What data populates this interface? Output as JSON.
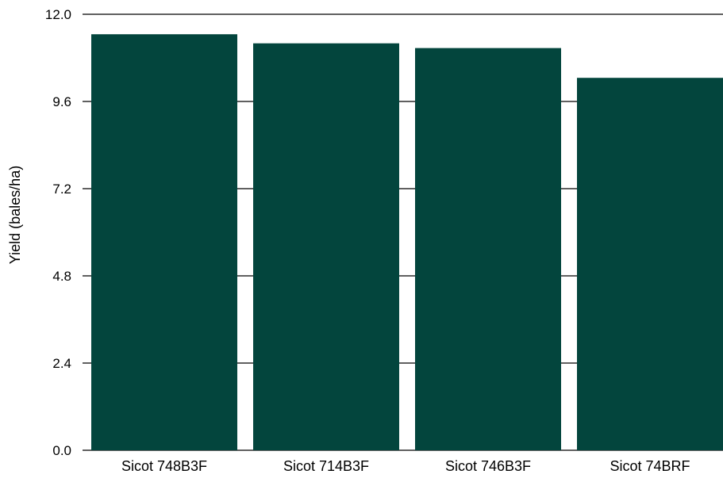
{
  "chart_data": {
    "type": "bar",
    "title": "",
    "xlabel": "",
    "ylabel": "Yield (bales/ha)",
    "categories": [
      "Sicot 748B3F",
      "Sicot 714B3F",
      "Sicot 746B3F",
      "Sicot 74BRF"
    ],
    "values": [
      11.45,
      11.2,
      11.07,
      10.25
    ],
    "ylim": [
      0,
      12
    ],
    "yticks": [
      "0.0",
      "2.4",
      "4.8",
      "7.2",
      "9.6",
      "12.0"
    ],
    "grid": true,
    "legend": "none",
    "bar_color": "#03453d"
  }
}
